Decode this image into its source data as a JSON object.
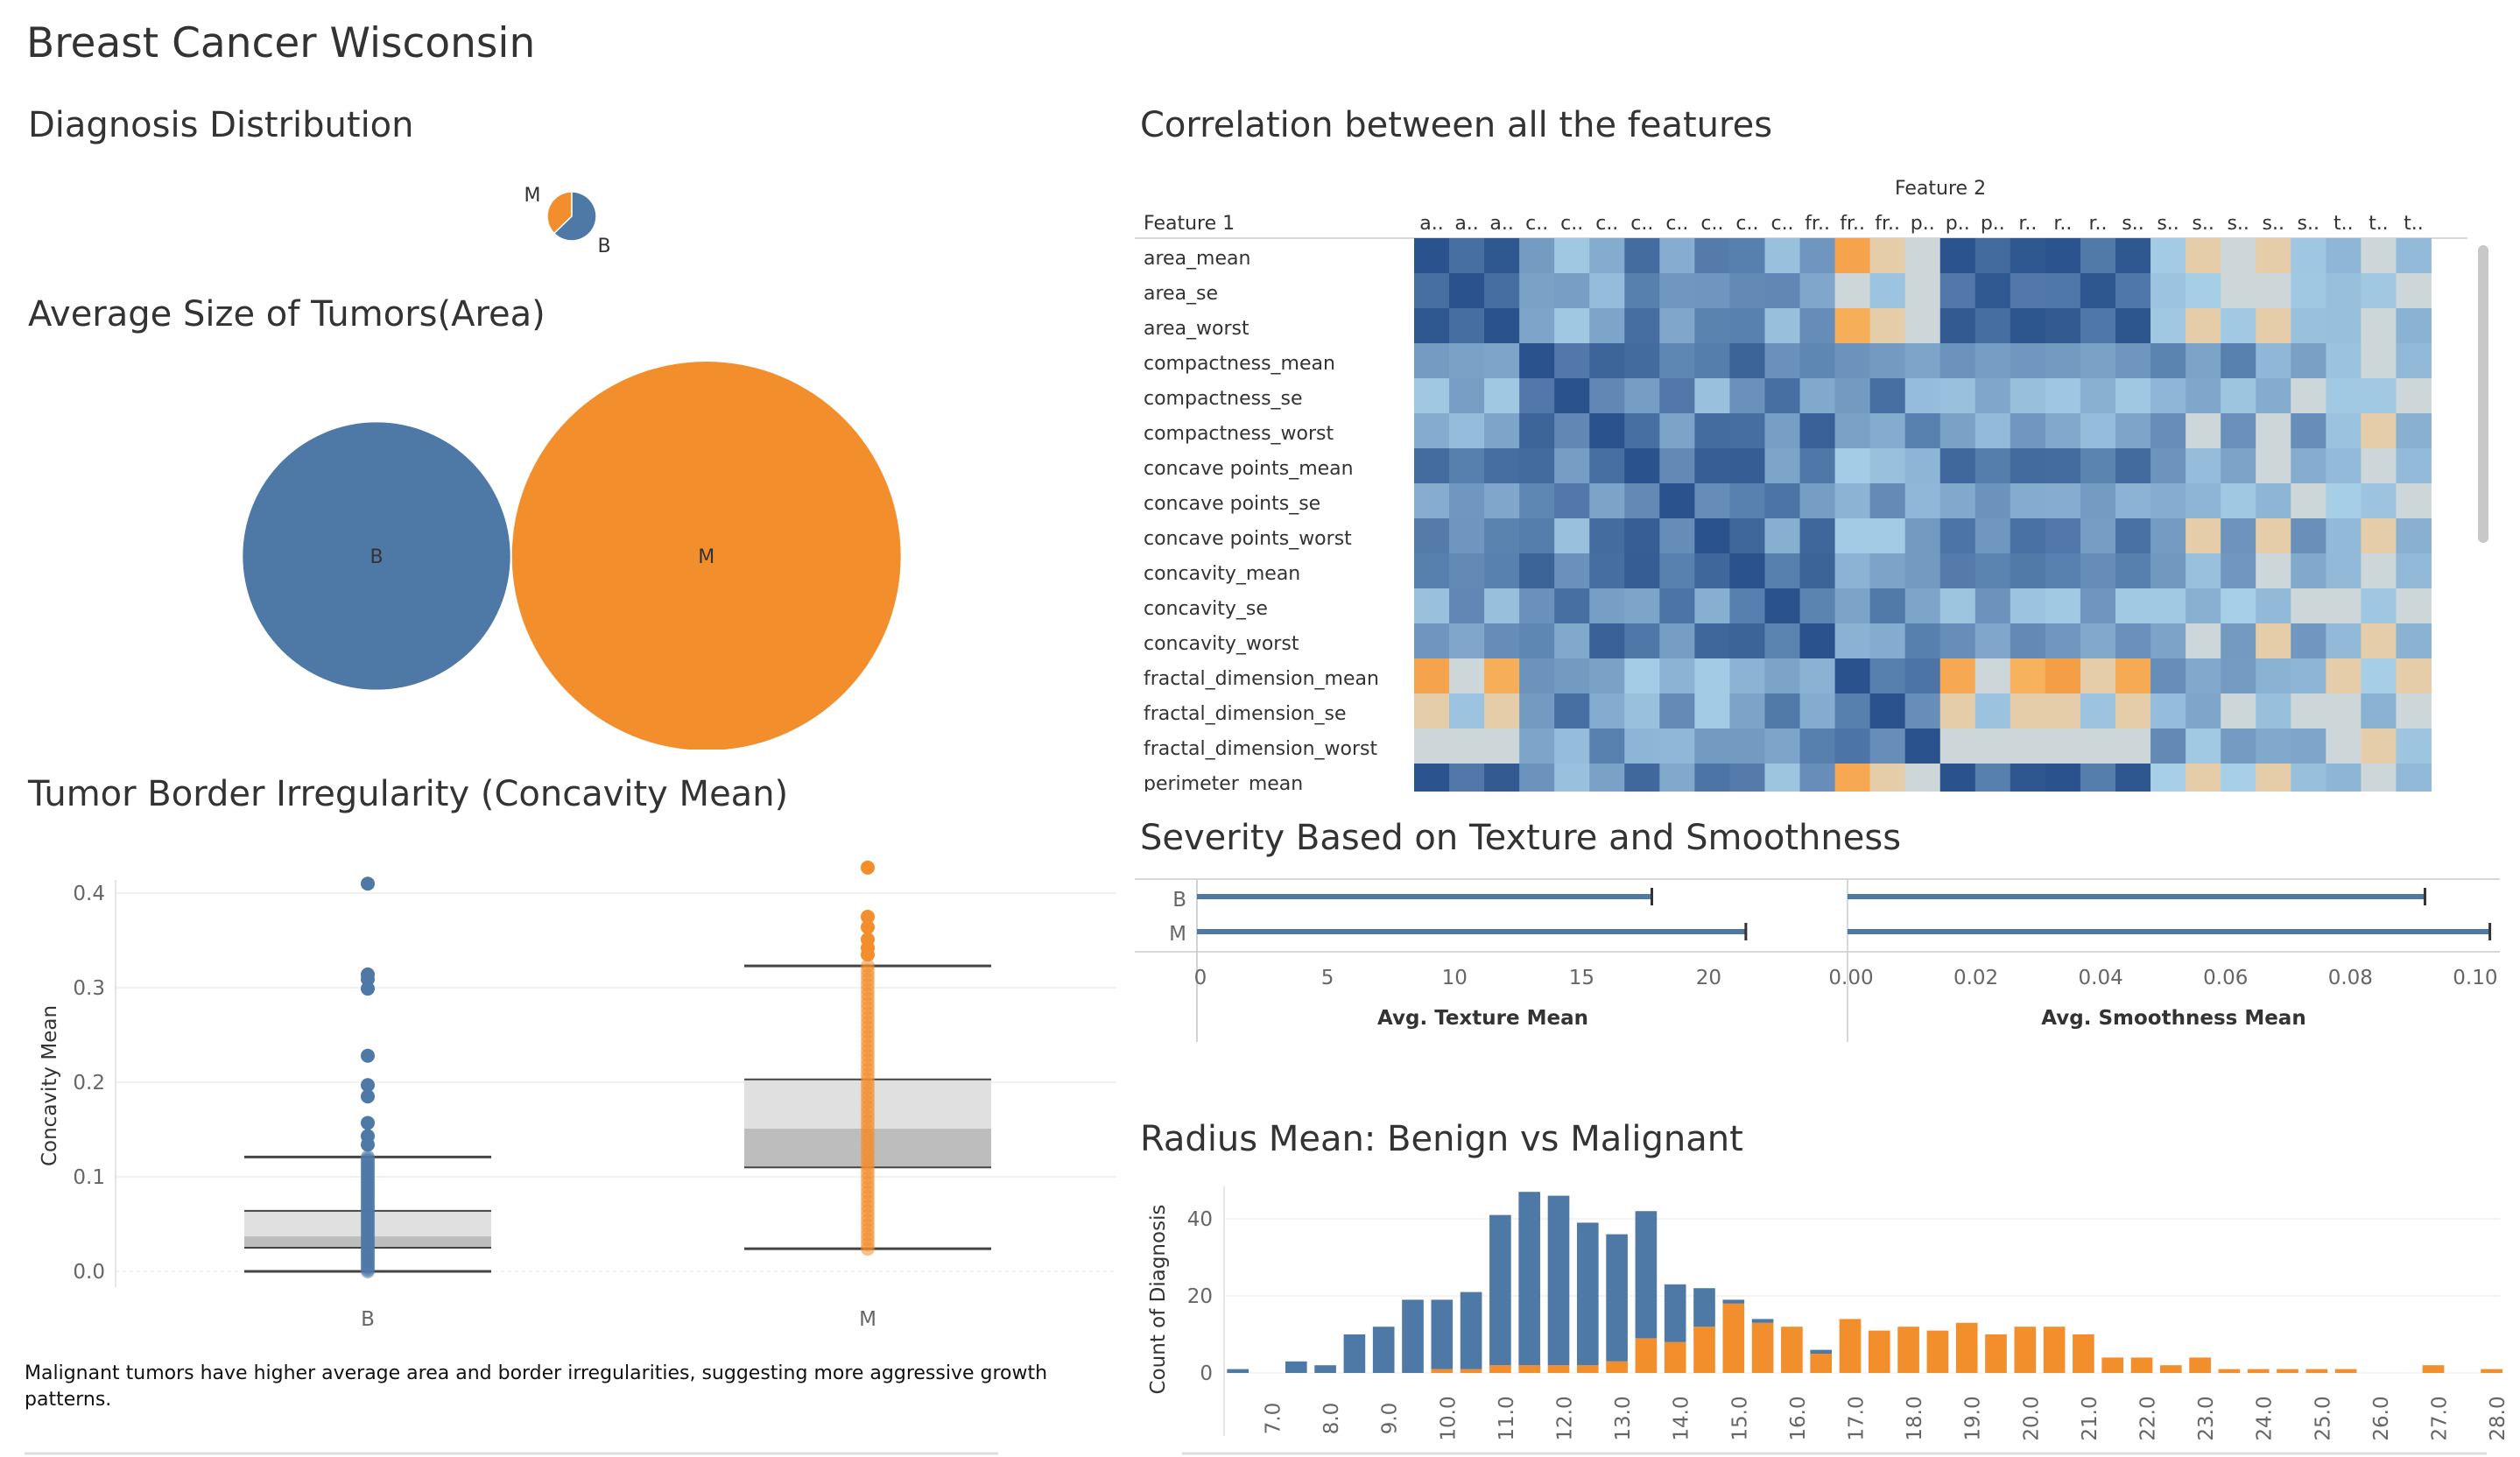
{
  "dashboard": {
    "title": "Breast Cancer Wisconsin"
  },
  "colors": {
    "benign": "#4e79a7",
    "malignant": "#f28e2b"
  },
  "diagnosis": {
    "title": "Diagnosis Distribution",
    "chart_data": {
      "type": "pie",
      "categories": [
        "B",
        "M"
      ],
      "values": [
        357,
        212
      ]
    }
  },
  "area": {
    "title": "Average Size of Tumors(Area)",
    "chart_data": {
      "type": "bubble",
      "categories": [
        "B",
        "M"
      ],
      "values": [
        462.8,
        978.4
      ]
    }
  },
  "concavity": {
    "title": "Tumor Border Irregularity (Concavity Mean)",
    "chart_data": {
      "type": "box",
      "categories": [
        "B",
        "M"
      ],
      "ylabel": "Concavity Mean",
      "ylim": [
        -0.02,
        0.44
      ],
      "yticks": [
        "0.0",
        "0.1",
        "0.2",
        "0.3",
        "0.4"
      ],
      "boxes": [
        {
          "name": "B",
          "whisker_low": 0.0,
          "q1": 0.025,
          "median": 0.037,
          "q3": 0.064,
          "whisker_high": 0.121
        },
        {
          "name": "M",
          "whisker_low": 0.024,
          "q1": 0.11,
          "median": 0.151,
          "q3": 0.203,
          "whisker_high": 0.323
        }
      ],
      "outliers": {
        "B": [
          0.41,
          0.314,
          0.309,
          0.299,
          0.228,
          0.197,
          0.185,
          0.157,
          0.143,
          0.134
        ],
        "M": [
          0.427,
          0.375,
          0.364,
          0.351,
          0.342,
          0.335
        ]
      }
    }
  },
  "note": {
    "text": "Malignant tumors have higher average area and border irregularities, suggesting more aggressive growth patterns."
  },
  "heatmap": {
    "title": "Correlation between all the features",
    "feature2_label": "Feature 2",
    "feature1_label": "Feature 1",
    "chart_data": {
      "type": "heatmap",
      "columns": [
        "a..",
        "a..",
        "a..",
        "c..",
        "c..",
        "c..",
        "c..",
        "c..",
        "c..",
        "c..",
        "c..",
        "fr..",
        "fr..",
        "fr..",
        "p..",
        "p..",
        "p..",
        "r..",
        "r..",
        "r..",
        "s..",
        "s..",
        "s..",
        "s..",
        "s..",
        "s..",
        "t..",
        "t..",
        "t.."
      ],
      "rows": [
        "area_mean",
        "area_se",
        "area_worst",
        "compactness_mean",
        "compactness_se",
        "compactness_worst",
        "concave points_mean",
        "concave points_se",
        "concave points_worst",
        "concavity_mean",
        "concavity_se",
        "concavity_worst",
        "fractal_dimension_mean",
        "fractal_dimension_se",
        "fractal_dimension_worst",
        "perimeter_mean"
      ],
      "values": [
        [
          1.0,
          0.8,
          0.96,
          0.5,
          0.2,
          0.39,
          0.82,
          0.38,
          0.72,
          0.69,
          0.25,
          0.54,
          -0.28,
          -0.09,
          0.0,
          0.99,
          0.83,
          0.96,
          0.99,
          0.73,
          0.96,
          0.18,
          -0.07,
          0.13,
          -0.07,
          0.21,
          0.32,
          0.11,
          0.29
        ],
        [
          0.8,
          1.0,
          0.81,
          0.46,
          0.48,
          0.28,
          0.69,
          0.53,
          0.54,
          0.62,
          0.63,
          0.42,
          0.0,
          0.23,
          0.1,
          0.74,
          0.95,
          0.74,
          0.75,
          0.97,
          0.75,
          0.23,
          0.16,
          0.14,
          0.13,
          0.2,
          0.26,
          0.2,
          0.11
        ],
        [
          0.96,
          0.81,
          1.0,
          0.44,
          0.2,
          0.44,
          0.81,
          0.42,
          0.67,
          0.68,
          0.26,
          0.6,
          -0.23,
          -0.06,
          0.04,
          0.94,
          0.81,
          0.98,
          0.94,
          0.75,
          0.98,
          0.2,
          -0.08,
          0.19,
          -0.07,
          0.25,
          0.26,
          0.07,
          0.35
        ],
        [
          0.5,
          0.46,
          0.44,
          1.0,
          0.74,
          0.87,
          0.83,
          0.64,
          0.7,
          0.88,
          0.57,
          0.64,
          0.56,
          0.51,
          0.44,
          0.56,
          0.49,
          0.53,
          0.51,
          0.46,
          0.54,
          0.66,
          0.45,
          0.68,
          0.31,
          0.47,
          0.24,
          0.05,
          0.3
        ],
        [
          0.2,
          0.48,
          0.2,
          0.74,
          1.0,
          0.63,
          0.49,
          0.74,
          0.25,
          0.57,
          0.8,
          0.41,
          0.51,
          0.8,
          0.28,
          0.25,
          0.42,
          0.26,
          0.21,
          0.36,
          0.2,
          0.32,
          0.42,
          0.22,
          0.39,
          0.13,
          0.19,
          0.19,
          0.14
        ],
        [
          0.39,
          0.28,
          0.44,
          0.87,
          0.63,
          1.0,
          0.8,
          0.45,
          0.82,
          0.81,
          0.48,
          0.89,
          0.46,
          0.39,
          0.68,
          0.46,
          0.29,
          0.53,
          0.41,
          0.28,
          0.44,
          0.59,
          0.04,
          0.57,
          0.01,
          0.59,
          0.24,
          -0.09,
          0.36
        ],
        [
          0.82,
          0.69,
          0.81,
          0.83,
          0.49,
          0.8,
          1.0,
          0.62,
          0.91,
          0.92,
          0.44,
          0.75,
          0.17,
          0.25,
          0.33,
          0.85,
          0.7,
          0.83,
          0.82,
          0.66,
          0.83,
          0.55,
          0.28,
          0.45,
          0.02,
          0.38,
          0.29,
          0.03,
          0.29
        ],
        [
          0.38,
          0.53,
          0.42,
          0.64,
          0.74,
          0.45,
          0.62,
          1.0,
          0.6,
          0.68,
          0.77,
          0.49,
          0.34,
          0.61,
          0.31,
          0.41,
          0.56,
          0.39,
          0.38,
          0.5,
          0.34,
          0.38,
          0.33,
          0.2,
          0.33,
          0.11,
          0.16,
          0.23,
          0.1
        ],
        [
          0.72,
          0.54,
          0.67,
          0.7,
          0.25,
          0.82,
          0.91,
          0.6,
          1.0,
          0.86,
          0.37,
          0.86,
          0.18,
          0.18,
          0.51,
          0.77,
          0.53,
          0.79,
          0.74,
          0.49,
          0.79,
          0.5,
          -0.1,
          0.55,
          -0.03,
          0.58,
          0.3,
          -0.08,
          0.36
        ],
        [
          0.69,
          0.62,
          0.68,
          0.88,
          0.57,
          0.81,
          0.92,
          0.68,
          0.86,
          1.0,
          0.69,
          0.88,
          0.34,
          0.45,
          0.51,
          0.72,
          0.66,
          0.73,
          0.68,
          0.6,
          0.69,
          0.52,
          0.25,
          0.53,
          0.08,
          0.41,
          0.3,
          0.0,
          0.3
        ],
        [
          0.25,
          0.63,
          0.26,
          0.57,
          0.8,
          0.48,
          0.44,
          0.77,
          0.37,
          0.69,
          1.0,
          0.66,
          0.45,
          0.73,
          0.44,
          0.22,
          0.56,
          0.23,
          0.19,
          0.54,
          0.19,
          0.19,
          0.36,
          0.15,
          0.3,
          0.06,
          0.12,
          0.21,
          0.07
        ],
        [
          0.54,
          0.42,
          0.6,
          0.64,
          0.41,
          0.89,
          0.75,
          0.49,
          0.86,
          0.88,
          0.66,
          1.0,
          0.35,
          0.39,
          0.69,
          0.59,
          0.42,
          0.62,
          0.53,
          0.41,
          0.57,
          0.45,
          0.0,
          0.51,
          -0.06,
          0.53,
          0.3,
          -0.08,
          0.35
        ],
        [
          -0.28,
          0.0,
          -0.23,
          0.56,
          0.51,
          0.46,
          0.17,
          0.34,
          0.18,
          0.34,
          0.45,
          0.35,
          1.0,
          0.69,
          0.77,
          -0.26,
          0.04,
          -0.21,
          -0.31,
          -0.09,
          -0.25,
          0.59,
          0.41,
          0.5,
          0.35,
          0.33,
          -0.08,
          0.16,
          -0.05
        ],
        [
          -0.09,
          0.23,
          -0.06,
          0.51,
          0.8,
          0.39,
          0.25,
          0.61,
          0.18,
          0.45,
          0.73,
          0.39,
          0.69,
          1.0,
          0.59,
          -0.05,
          0.24,
          -0.06,
          -0.04,
          0.23,
          -0.04,
          0.28,
          0.43,
          0.1,
          0.26,
          0.08,
          0.05,
          0.35,
          0.0
        ],
        [
          0.0,
          0.1,
          0.04,
          0.44,
          0.28,
          0.68,
          0.33,
          0.31,
          0.51,
          0.51,
          0.44,
          0.69,
          0.77,
          0.59,
          1.0,
          0.05,
          0.05,
          0.09,
          0.01,
          0.1,
          0.09,
          0.62,
          0.19,
          0.5,
          0.41,
          0.43,
          0.12,
          -0.1,
          0.22
        ],
        [
          0.99,
          0.74,
          0.94,
          0.56,
          0.25,
          0.46,
          0.85,
          0.41,
          0.77,
          0.72,
          0.22,
          0.59,
          -0.26,
          -0.05,
          0.05,
          1.0,
          0.69,
          0.97,
          1.0,
          0.7,
          0.97,
          0.15,
          -0.09,
          0.15,
          -0.07,
          0.26,
          0.33,
          0.1,
          0.3
        ]
      ]
    }
  },
  "severity": {
    "title": "Severity Based on Texture and Smoothness",
    "chart_data": {
      "type": "bar",
      "categories": [
        "B",
        "M"
      ],
      "panels": [
        {
          "xlabel": "Avg. Texture Mean",
          "values": [
            17.9,
            21.6
          ],
          "xlim": [
            0,
            22.5
          ],
          "ticks": [
            "0",
            "5",
            "10",
            "15",
            "20"
          ],
          "tick_values": [
            0,
            5,
            10,
            15,
            20
          ]
        },
        {
          "xlabel": "Avg. Smoothness Mean",
          "values": [
            0.0925,
            0.1029
          ],
          "xlim": [
            0,
            0.1045
          ],
          "ticks": [
            "0.00",
            "0.02",
            "0.04",
            "0.06",
            "0.08",
            "0.10"
          ],
          "tick_values": [
            0,
            0.02,
            0.04,
            0.06,
            0.08,
            0.1
          ]
        }
      ]
    }
  },
  "radius": {
    "title": "Radius Mean: Benign vs Malignant",
    "chart_data": {
      "type": "bar",
      "stacked": true,
      "ylabel": "Count of Diagnosis",
      "ylim": [
        -4,
        48
      ],
      "yticks": [
        "0",
        "20",
        "40"
      ],
      "x": [
        6.5,
        7.0,
        7.5,
        8.0,
        8.5,
        9.0,
        9.5,
        10.0,
        10.5,
        11.0,
        11.5,
        12.0,
        12.5,
        13.0,
        13.5,
        14.0,
        14.5,
        15.0,
        15.5,
        16.0,
        16.5,
        17.0,
        17.5,
        18.0,
        18.5,
        19.0,
        19.5,
        20.0,
        20.5,
        21.0,
        21.5,
        22.0,
        22.5,
        23.0,
        23.5,
        24.0,
        24.5,
        25.0,
        25.5,
        26.0,
        26.5,
        27.0,
        27.5,
        28.0
      ],
      "xticks": [
        "7.0",
        "8.0",
        "9.0",
        "10.0",
        "11.0",
        "12.0",
        "13.0",
        "14.0",
        "15.0",
        "16.0",
        "17.0",
        "18.0",
        "19.0",
        "20.0",
        "21.0",
        "22.0",
        "23.0",
        "24.0",
        "25.0",
        "26.0",
        "27.0",
        "28.0"
      ],
      "series": [
        {
          "name": "B",
          "values": [
            1,
            0,
            3,
            2,
            10,
            12,
            19,
            18,
            20,
            39,
            45,
            44,
            37,
            33,
            33,
            15,
            10,
            1,
            1,
            0,
            1,
            0,
            0,
            0,
            0,
            0,
            0,
            0,
            0,
            0,
            0,
            0,
            0,
            0,
            0,
            0,
            0,
            0,
            0,
            0,
            0,
            0,
            0,
            0
          ]
        },
        {
          "name": "M",
          "values": [
            0,
            0,
            0,
            0,
            0,
            0,
            0,
            1,
            1,
            2,
            2,
            2,
            2,
            3,
            9,
            8,
            12,
            18,
            13,
            12,
            5,
            14,
            11,
            12,
            11,
            13,
            10,
            12,
            12,
            10,
            4,
            4,
            2,
            4,
            1,
            1,
            1,
            1,
            1,
            0,
            0,
            2,
            0,
            1
          ]
        }
      ]
    }
  }
}
